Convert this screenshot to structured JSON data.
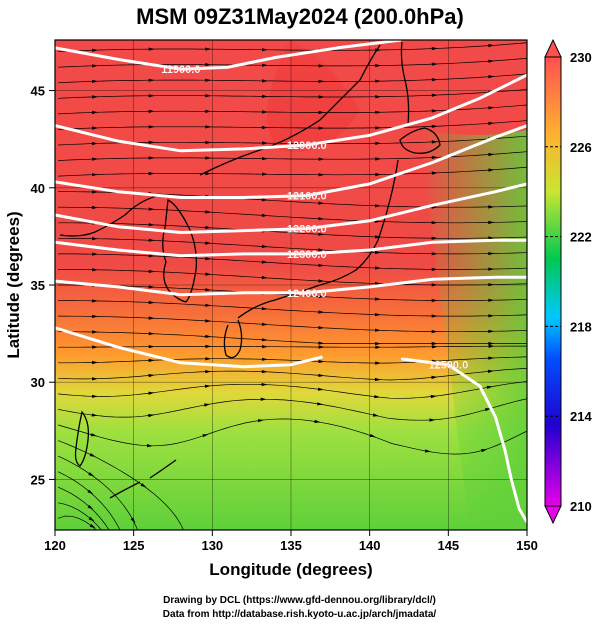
{
  "chart_data": {
    "type": "heatmap",
    "title": "MSM 09Z31May2024 (200.0hPa)",
    "xlabel": "Longitude (degrees)",
    "ylabel": "Latitude  (degrees)",
    "xlim": [
      120,
      150
    ],
    "ylim": [
      22.4,
      47.6
    ],
    "x_ticks": [
      120,
      125,
      130,
      135,
      140,
      145,
      150
    ],
    "y_ticks": [
      25,
      30,
      35,
      40,
      45
    ],
    "grid": true,
    "colorbar": {
      "range": [
        210,
        230
      ],
      "ticks": [
        210,
        214,
        218,
        222,
        226,
        230
      ],
      "placement": "right"
    },
    "temperature_field": [
      {
        "lat": 47.6,
        "value": 229
      },
      {
        "lat": 42,
        "value": 229
      },
      {
        "lat": 37,
        "value": 228
      },
      {
        "lat": 34,
        "value": 227
      },
      {
        "lat": 31,
        "value": 225
      },
      {
        "lat": 28,
        "value": 223
      },
      {
        "lat": 22.4,
        "value": 222
      }
    ],
    "contours": [
      {
        "label": "11900.0",
        "points": [
          [
            120,
            47.2
          ],
          [
            124,
            46.6
          ],
          [
            128,
            46.1
          ],
          [
            131,
            46.2
          ],
          [
            134,
            46.7
          ],
          [
            138,
            47.2
          ],
          [
            142,
            47.6
          ]
        ]
      },
      {
        "label": "12000.0",
        "points": [
          [
            120,
            43.2
          ],
          [
            124,
            42.4
          ],
          [
            128,
            41.9
          ],
          [
            132,
            42.0
          ],
          [
            136,
            42.2
          ],
          [
            140,
            42.7
          ],
          [
            144,
            43.6
          ],
          [
            147,
            44.6
          ],
          [
            150,
            45.8
          ]
        ]
      },
      {
        "label": "12100.0",
        "points": [
          [
            120,
            40.3
          ],
          [
            124,
            39.8
          ],
          [
            128,
            39.5
          ],
          [
            132,
            39.5
          ],
          [
            136,
            39.6
          ],
          [
            140,
            40.2
          ],
          [
            144,
            41.3
          ],
          [
            148,
            42.6
          ],
          [
            150,
            43.2
          ]
        ]
      },
      {
        "label": "12200.0",
        "points": [
          [
            120,
            38.6
          ],
          [
            124,
            38.0
          ],
          [
            128,
            37.7
          ],
          [
            132,
            37.8
          ],
          [
            136,
            37.9
          ],
          [
            140,
            38.3
          ],
          [
            144,
            39.1
          ],
          [
            148,
            39.8
          ],
          [
            150,
            40.2
          ]
        ]
      },
      {
        "label": "12300.0",
        "points": [
          [
            120,
            37.2
          ],
          [
            124,
            36.8
          ],
          [
            128,
            36.5
          ],
          [
            132,
            36.6
          ],
          [
            136,
            36.6
          ],
          [
            140,
            36.8
          ],
          [
            144,
            37.2
          ],
          [
            148,
            37.3
          ],
          [
            150,
            37.3
          ]
        ]
      },
      {
        "label": "12400.0",
        "points": [
          [
            120,
            35.2
          ],
          [
            124,
            34.9
          ],
          [
            128,
            34.5
          ],
          [
            132,
            34.6
          ],
          [
            136,
            34.6
          ],
          [
            140,
            34.9
          ],
          [
            144,
            35.3
          ],
          [
            148,
            35.4
          ],
          [
            150,
            35.4
          ]
        ]
      },
      {
        "label": "",
        "points": [
          [
            120,
            32.8
          ],
          [
            124,
            31.8
          ],
          [
            128,
            31.0
          ],
          [
            132,
            30.8
          ],
          [
            135,
            30.9
          ],
          [
            137,
            31.3
          ]
        ]
      },
      {
        "label": "12500.0",
        "points": [
          [
            142,
            31.2
          ],
          [
            145,
            30.9
          ],
          [
            147,
            29.8
          ],
          [
            148,
            28.2
          ],
          [
            148.6,
            26.5
          ],
          [
            149,
            25
          ],
          [
            149.5,
            23.5
          ],
          [
            150,
            22.8
          ]
        ]
      }
    ],
    "colors": {
      "colorbar_stops": [
        "#e800e8",
        "#0000c8",
        "#00c8ff",
        "#00c850",
        "#c8e632",
        "#ff9020",
        "#ff5050"
      ],
      "background_warm": "#f04848",
      "background_mid": "#ff9a2e",
      "background_cool": "#64d23c",
      "contour": "#ffffff",
      "streamline": "#000000"
    }
  },
  "footer": {
    "line1": "Drawing by DCL (https://www.gfd-dennou.org/library/dcl/)",
    "line2": "Data from http://database.rish.kyoto-u.ac.jp/arch/jmadata/"
  }
}
